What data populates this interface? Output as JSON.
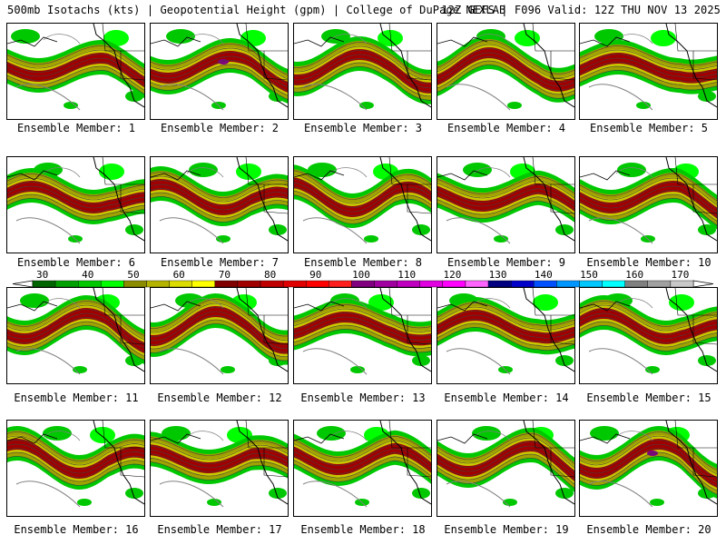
{
  "header": {
    "left_text": "500mb Isotachs (kts) | Geopotential Height (gpm) | College of DuPage NEXLAB",
    "right_text": "12Z GEFS | F096 Valid: 12Z THU NOV 13 2025"
  },
  "member_label_prefix": "Ensemble Member:",
  "members": [
    1,
    2,
    3,
    4,
    5,
    6,
    7,
    8,
    9,
    10,
    11,
    12,
    13,
    14,
    15,
    16,
    17,
    18,
    19,
    20
  ],
  "colorbar": {
    "ticks": [
      "30",
      "40",
      "50",
      "60",
      "70",
      "80",
      "90",
      "100",
      "110",
      "120",
      "130",
      "140",
      "150",
      "160",
      "170"
    ],
    "colors": [
      "#006400",
      "#00a000",
      "#00c800",
      "#00ff00",
      "#8c8c00",
      "#b4b400",
      "#dcdc00",
      "#ffff00",
      "#800000",
      "#a00000",
      "#c00000",
      "#e00000",
      "#ff0000",
      "#ff1e1e",
      "#800080",
      "#a000a0",
      "#c000c0",
      "#e000e0",
      "#ff00ff",
      "#ff64ff",
      "#000080",
      "#0000c8",
      "#0050ff",
      "#0096ff",
      "#00c8ff",
      "#00ffff",
      "#808080",
      "#a0a0a0",
      "#c8c8c8"
    ]
  },
  "palette": {
    "green_dark": "#008000",
    "green": "#00c800",
    "green_light": "#00ff00",
    "olive": "#a0a000",
    "yellow": "#c8c800",
    "red": "#a00000",
    "purple": "#800080",
    "contour": "#404040",
    "coast": "#000000"
  }
}
